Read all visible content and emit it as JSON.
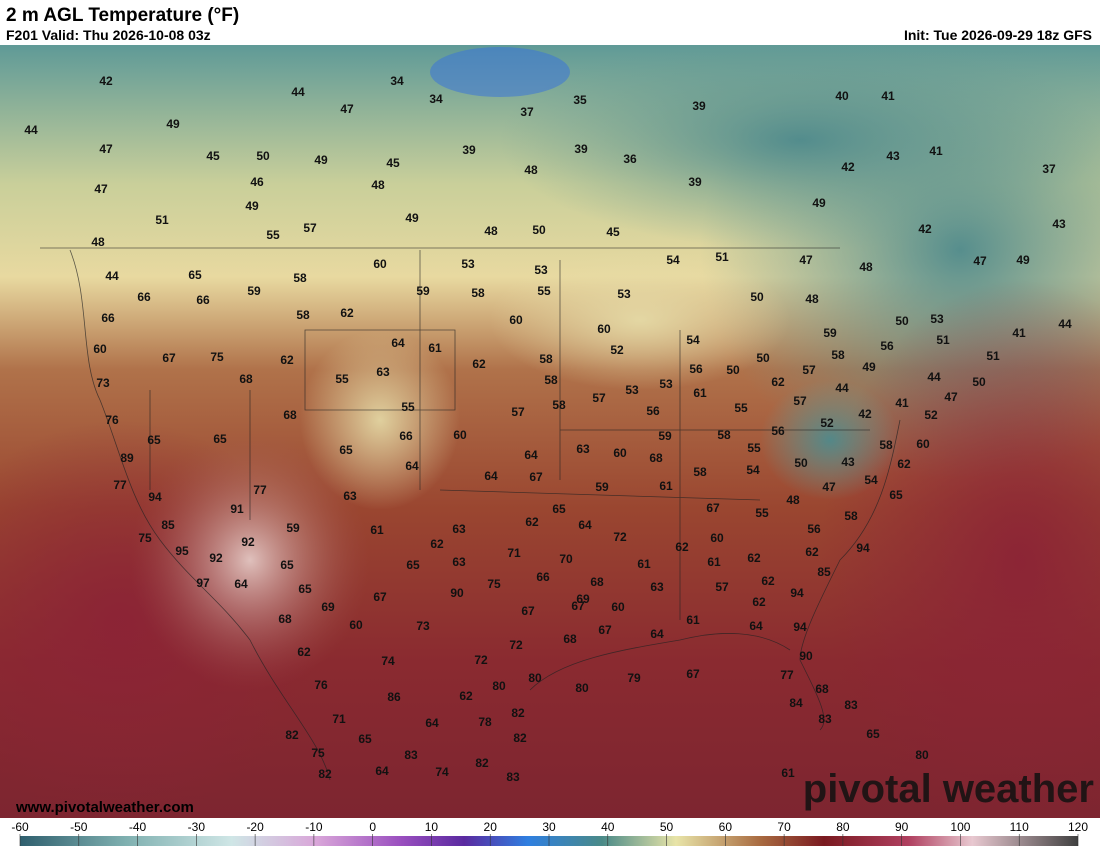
{
  "header": {
    "title": "2 m AGL Temperature (°F)",
    "valid": "F201 Valid: Thu 2026-10-08 03z",
    "init": "Init: Tue 2026-09-29 18z GFS"
  },
  "watermark": {
    "url": "www.pivotalweather.com",
    "brand": "pivotal weather"
  },
  "colorbar": {
    "ticks": [
      -60,
      -50,
      -40,
      -30,
      -20,
      -10,
      0,
      10,
      20,
      30,
      40,
      50,
      60,
      70,
      80,
      90,
      100,
      110,
      120
    ]
  },
  "map": {
    "labels": [
      42,
      44,
      34,
      34,
      47,
      37,
      35,
      39,
      40,
      41,
      44,
      49,
      47,
      45,
      50,
      49,
      45,
      39,
      39,
      36,
      43,
      41,
      37,
      42,
      47,
      46,
      48,
      48,
      39,
      51,
      49,
      49,
      49,
      48,
      55,
      57,
      48,
      50,
      45,
      42,
      43,
      44,
      65,
      60,
      53,
      53,
      54,
      51,
      47,
      48,
      47,
      49,
      66,
      66,
      59,
      58,
      59,
      58,
      55,
      53,
      50,
      48,
      66,
      58,
      62,
      60,
      60,
      50,
      53,
      41,
      44,
      60,
      67,
      75,
      62,
      64,
      61,
      62,
      58,
      52,
      54,
      59,
      56,
      51,
      51,
      73,
      68,
      55,
      63,
      58,
      57,
      53,
      53,
      56,
      50,
      50,
      62,
      57,
      58,
      44,
      49,
      44,
      50,
      76,
      68,
      55,
      57,
      58,
      56,
      61,
      55,
      57,
      42,
      41,
      52,
      47,
      65,
      65,
      65,
      66,
      60,
      63,
      60,
      59,
      58,
      56,
      52,
      58,
      60,
      89,
      64,
      64,
      64,
      67,
      68,
      58,
      55,
      54,
      50,
      43,
      62,
      77,
      77,
      63,
      59,
      61,
      54,
      94,
      91,
      48,
      47,
      65,
      85,
      59,
      63,
      62,
      65,
      64,
      67,
      55,
      56,
      58,
      75,
      92,
      61,
      62,
      72,
      60,
      62,
      95,
      92,
      63,
      65,
      71,
      70,
      61,
      61,
      62,
      62,
      94,
      65,
      90,
      97,
      64,
      75,
      66,
      68,
      63,
      57,
      62,
      85,
      65,
      69,
      67,
      69,
      67,
      67,
      60,
      62,
      94,
      68,
      60,
      73,
      68,
      67,
      64,
      61,
      64,
      94,
      62,
      74,
      72,
      72,
      90,
      76,
      80,
      80,
      80,
      79,
      67,
      77,
      68,
      62,
      86,
      71,
      64,
      78,
      82,
      84,
      83,
      83,
      82,
      65,
      83,
      75,
      82,
      65,
      82,
      82,
      64,
      74,
      83,
      80,
      61
    ]
  }
}
